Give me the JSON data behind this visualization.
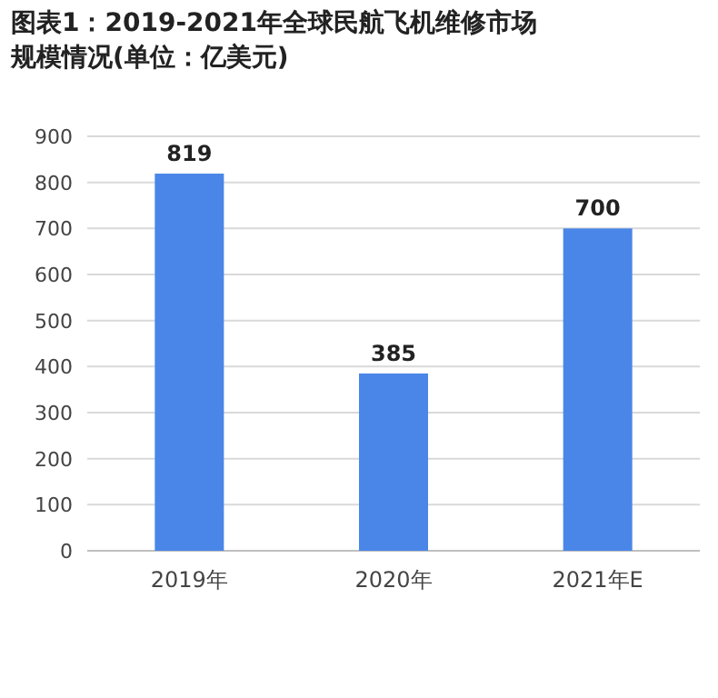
{
  "chart_data": {
    "type": "bar",
    "title": "图表1：2019-2021年全球民航飞机维修市场规模情况(单位：亿美元)",
    "categories": [
      "2019年",
      "2020年",
      "2021年E"
    ],
    "values": [
      819,
      385,
      700
    ],
    "color": "#4a86e8",
    "ylim": [
      0,
      900
    ],
    "yticks": [
      0,
      100,
      200,
      300,
      400,
      500,
      600,
      700,
      800,
      900
    ],
    "grid": "y",
    "data_labels": true
  }
}
